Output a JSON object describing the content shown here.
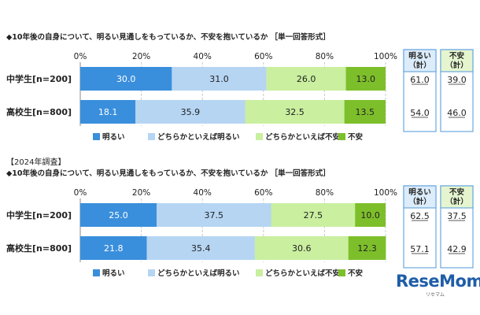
{
  "chart_data": [
    {
      "type": "bar",
      "stacked": true,
      "orientation": "horizontal",
      "heading": "",
      "title": "◆10年後の自身について、明るい見通しをもっているか、不安を抱いているか ［単一回答形式］",
      "categories": [
        "中学生[n=200]",
        "高校生[n=800]"
      ],
      "series": [
        {
          "name": "明るい",
          "color": "#3a8fdc",
          "values": [
            30.0,
            18.1
          ]
        },
        {
          "name": "どちらかといえば明るい",
          "color": "#b5d5f3",
          "values": [
            31.0,
            35.9
          ]
        },
        {
          "name": "どちらかといえば不安",
          "color": "#c9ef9f",
          "values": [
            26.0,
            32.5
          ]
        },
        {
          "name": "不安",
          "color": "#7dbf2a",
          "values": [
            13.0,
            13.5
          ]
        }
      ],
      "x_ticks": [
        "0%",
        "20%",
        "40%",
        "60%",
        "80%",
        "100%"
      ],
      "xlim": [
        0,
        100
      ],
      "summary": [
        {
          "header": "明るい\n（計）",
          "values": [
            "61.0",
            "54.0"
          ],
          "bg": "#dcecfa"
        },
        {
          "header": "不安\n（計）",
          "values": [
            "39.0",
            "46.0"
          ],
          "bg": "#e5f5cf"
        }
      ]
    },
    {
      "type": "bar",
      "stacked": true,
      "orientation": "horizontal",
      "heading": "【2024年調査】",
      "title": "◆10年後の自身について、明るい見通しをもっているか、不安を抱いているか ［単一回答形式］",
      "categories": [
        "中学生[n=200]",
        "高校生[n=800]"
      ],
      "series": [
        {
          "name": "明るい",
          "color": "#3a8fdc",
          "values": [
            25.0,
            21.8
          ]
        },
        {
          "name": "どちらかといえば明るい",
          "color": "#b5d5f3",
          "values": [
            37.5,
            35.4
          ]
        },
        {
          "name": "どちらかといえば不安",
          "color": "#c9ef9f",
          "values": [
            27.5,
            30.6
          ]
        },
        {
          "name": "不安",
          "color": "#7dbf2a",
          "values": [
            10.0,
            12.3
          ]
        }
      ],
      "x_ticks": [
        "0%",
        "20%",
        "40%",
        "60%",
        "80%",
        "100%"
      ],
      "xlim": [
        0,
        100
      ],
      "summary": [
        {
          "header": "明るい\n（計）",
          "values": [
            "62.5",
            "57.1"
          ],
          "bg": "#dcecfa"
        },
        {
          "header": "不安\n（計）",
          "values": [
            "37.5",
            "42.9"
          ],
          "bg": "#e5f5cf"
        }
      ]
    }
  ],
  "watermark": {
    "logo_text": "ReseMom",
    "sub_text": "リセマム"
  }
}
